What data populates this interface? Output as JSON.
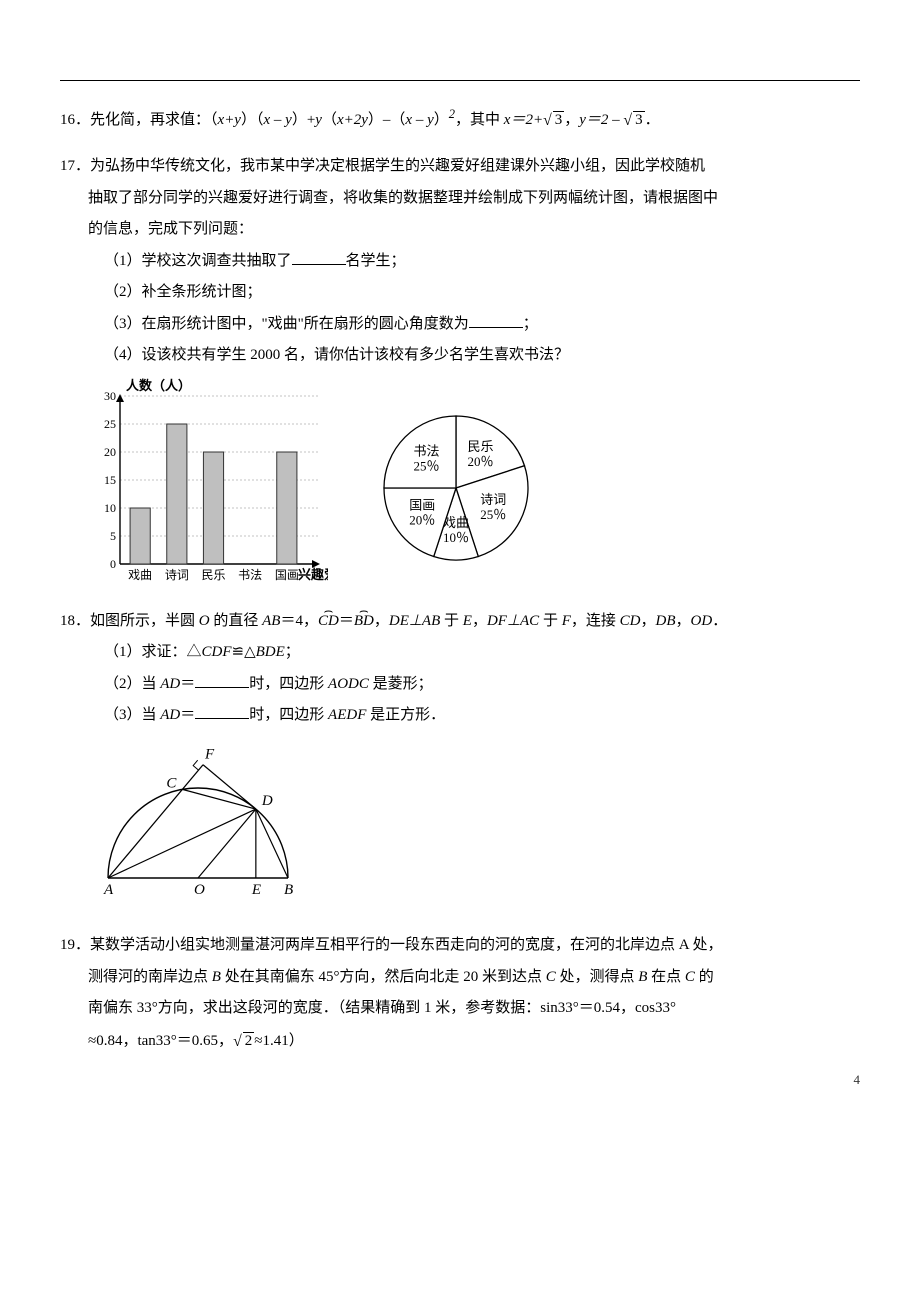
{
  "page_number": "4",
  "q16": {
    "num": "16．",
    "text_a": "先化简，再求值：（",
    "expr_a": "x+y",
    "text_b": "）（",
    "expr_b": "x – y",
    "text_c": "）+",
    "expr_c": "y",
    "text_d": "（",
    "expr_d": "x+2y",
    "text_e": "）–（",
    "expr_e": "x – y",
    "text_f": "）",
    "sq": "2",
    "text_g": "，其中 ",
    "x_eq": "x＝2+",
    "sqrt_a": "3",
    "comma": "，",
    "y_eq": "y＝2 – ",
    "sqrt_b": "3",
    "end": "．"
  },
  "q17": {
    "num": "17．",
    "stem1": "为弘扬中华传统文化，我市某中学决定根据学生的兴趣爱好组建课外兴趣小组，因此学校随机",
    "stem2": "抽取了部分同学的兴趣爱好进行调查，将收集的数据整理并绘制成下列两幅统计图，请根据图中",
    "stem3": "的信息，完成下列问题：",
    "p1a": "（1）学校这次调查共抽取了",
    "p1b": "名学生；",
    "p2": "（2）补全条形统计图；",
    "p3a": "（3）在扇形统计图中，\"戏曲\"所在扇形的圆心角度数为",
    "p3b": "；",
    "p4": "（4）设该校共有学生 2000 名，请你估计该校有多少名学生喜欢书法？",
    "bar": {
      "ylabel": "人数（人）",
      "xlabel": "兴趣爱好",
      "categories": [
        "戏曲",
        "诗词",
        "民乐",
        "书法",
        "国画"
      ],
      "values": [
        10,
        25,
        20,
        null,
        20
      ],
      "ylim": [
        0,
        30
      ],
      "ytick_step": 5,
      "bar_color": "#bfbfbf",
      "bar_border": "#333333",
      "grid_color": "#888888",
      "axis_color": "#000000",
      "bar_width": 0.55
    },
    "pie": {
      "slices": [
        {
          "label": "民乐",
          "value": 20,
          "text": "20％"
        },
        {
          "label": "诗词",
          "value": 25,
          "text": "25％"
        },
        {
          "label": "戏曲",
          "value": 10,
          "text": "10％"
        },
        {
          "label": "国画",
          "value": 20,
          "text": "20％"
        },
        {
          "label": "书法",
          "value": 25,
          "text": "25％"
        }
      ],
      "fill": "#ffffff",
      "stroke": "#000000"
    }
  },
  "q18": {
    "num": "18．",
    "stem_a": "如图所示，半圆 ",
    "O": "O",
    "stem_b": " 的直径 ",
    "AB": "AB",
    "stem_c": "＝4，",
    "arc_cd": "CD",
    "eq": "＝",
    "arc_bd": "BD",
    "stem_d": "，",
    "de": "DE⊥AB",
    "stem_e": " 于 ",
    "E": "E",
    "stem_f": "，",
    "df": "DF⊥AC",
    "stem_g": " 于 ",
    "F": "F",
    "stem_h": "，连接 ",
    "cd": "CD",
    "c1": "，",
    "db": "DB",
    "c2": "，",
    "od": "OD",
    "stem_i": "．",
    "p1a": "（1）求证：△",
    "cdf": "CDF",
    "p1b": "≌△",
    "bde": "BDE",
    "p1c": "；",
    "p2a": "（2）当 ",
    "ad": "AD",
    "p2b": "＝",
    "p2c": "时，四边形 ",
    "aodc": "AODC",
    "p2d": " 是菱形；",
    "p3a": "（3）当 ",
    "p3b": "＝",
    "p3c": "时，四边形 ",
    "aedf": "AEDF",
    "p3d": " 是正方形．",
    "fig": {
      "labels": [
        "F",
        "C",
        "D",
        "A",
        "O",
        "E",
        "B"
      ],
      "stroke": "#000000",
      "fill": "#ffffff"
    }
  },
  "q19": {
    "num": "19．",
    "l1": "某数学活动小组实地测量湛河两岸互相平行的一段东西走向的河的宽度，在河的北岸边点 A 处，",
    "l2a": "测得河的南岸边点 ",
    "B": "B",
    "l2b": " 处在其南偏东 45°方向，然后向北走 20 米到达点 ",
    "C": "C",
    "l2c": " 处，测得点 ",
    "l2d": " 在点 ",
    "l2e": " 的",
    "l3a": "南偏东 33°方向，求出这段河的宽度．（结果精确到 1 米，参考数据：sin33°＝0.54，cos33°",
    "l4a": "≈0.84，tan33°＝0.65，",
    "sqrt2": "2",
    "l4b": "≈1.41）"
  }
}
